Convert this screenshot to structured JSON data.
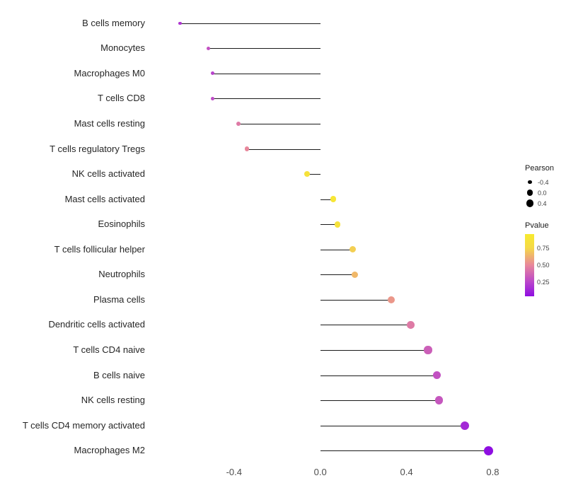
{
  "chart_data": {
    "type": "scatter",
    "subtype": "lollipop",
    "orientation": "horizontal",
    "grid": false,
    "xlim": [
      -0.78,
      0.91
    ],
    "x_ticks": [
      "-0.4",
      "0.0",
      "0.4",
      "0.8"
    ],
    "x_tick_values": [
      -0.4,
      0.0,
      0.4,
      0.8
    ],
    "points": [
      {
        "label": "B cells memory",
        "pearson": -0.65,
        "pvalue": 0.2
      },
      {
        "label": "Monocytes",
        "pearson": -0.52,
        "pvalue": 0.3
      },
      {
        "label": "Macrophages M0",
        "pearson": -0.5,
        "pvalue": 0.25
      },
      {
        "label": "T cells CD8",
        "pearson": -0.5,
        "pvalue": 0.28
      },
      {
        "label": "Mast cells resting",
        "pearson": -0.38,
        "pvalue": 0.45
      },
      {
        "label": "T cells regulatory Tregs",
        "pearson": -0.34,
        "pvalue": 0.5
      },
      {
        "label": "NK cells activated",
        "pearson": -0.06,
        "pvalue": 0.85
      },
      {
        "label": "Mast cells activated",
        "pearson": 0.06,
        "pvalue": 0.9
      },
      {
        "label": "Eosinophils",
        "pearson": 0.08,
        "pvalue": 0.85
      },
      {
        "label": "T cells follicular helper",
        "pearson": 0.15,
        "pvalue": 0.72
      },
      {
        "label": "Neutrophils",
        "pearson": 0.16,
        "pvalue": 0.65
      },
      {
        "label": "Plasma cells",
        "pearson": 0.33,
        "pvalue": 0.55
      },
      {
        "label": "Dendritic cells activated",
        "pearson": 0.42,
        "pvalue": 0.45
      },
      {
        "label": "T cells CD4 naive",
        "pearson": 0.5,
        "pvalue": 0.35
      },
      {
        "label": "B cells naive",
        "pearson": 0.54,
        "pvalue": 0.3
      },
      {
        "label": "NK cells resting",
        "pearson": 0.55,
        "pvalue": 0.32
      },
      {
        "label": "T cells CD4 memory activated",
        "pearson": 0.67,
        "pvalue": 0.15
      },
      {
        "label": "Macrophages M2",
        "pearson": 0.78,
        "pvalue": 0.05
      }
    ],
    "legend": {
      "position": "right",
      "size_legend": {
        "title": "Pearson",
        "entries": [
          "-0.4",
          "0.0",
          "0.4"
        ],
        "values": [
          -0.4,
          0.0,
          0.4
        ]
      },
      "color_legend": {
        "title": "Pvalue",
        "tick_labels": [
          "0.75",
          "0.50",
          "0.25"
        ],
        "tick_values": [
          0.75,
          0.5,
          0.25
        ],
        "bar_range": [
          0.05,
          0.95
        ],
        "gradient_stops": [
          {
            "value": 0.0,
            "color": "#8400e6"
          },
          {
            "value": 0.25,
            "color": "#b844cc"
          },
          {
            "value": 0.5,
            "color": "#e8879b"
          },
          {
            "value": 0.75,
            "color": "#f5d948"
          },
          {
            "value": 1.0,
            "color": "#f8ef28"
          }
        ]
      }
    },
    "colors": {
      "line": "#1a1a1a",
      "axis_text": "#4d4d4d",
      "legend_dot": "#000000",
      "background": "#ffffff"
    }
  }
}
